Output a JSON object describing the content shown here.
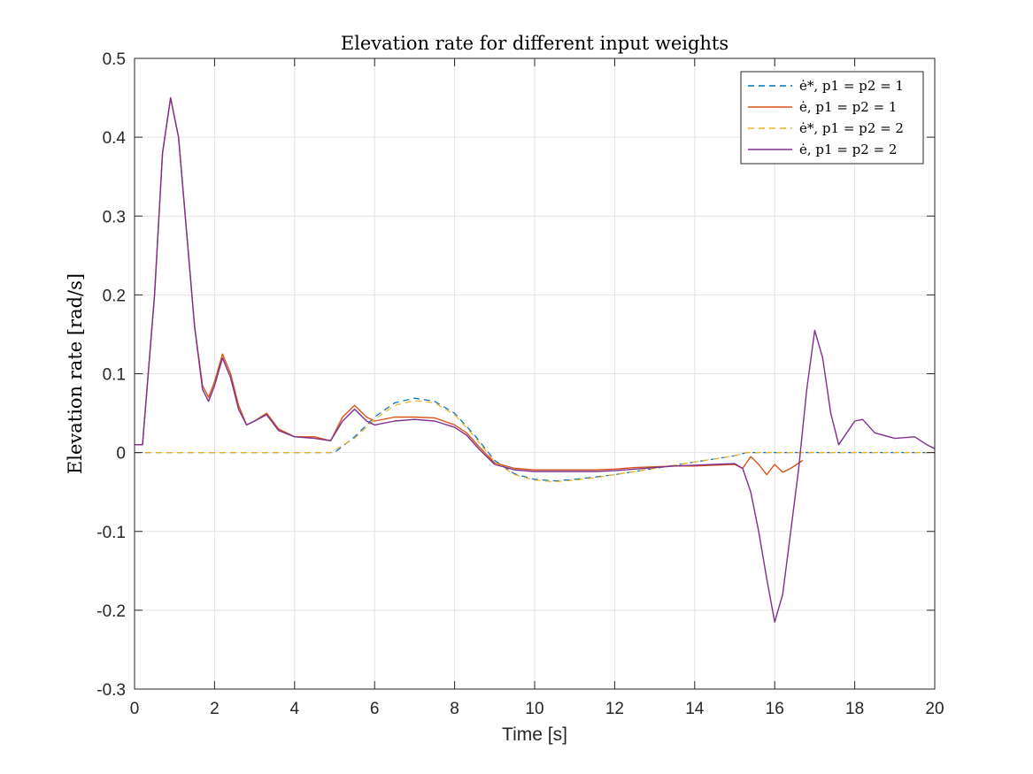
{
  "chart_data": {
    "type": "line",
    "title": "Elevation rate for different input weights",
    "xlabel": "Time [s]",
    "ylabel": "Elevation rate [rad/s]",
    "xlim": [
      0,
      20
    ],
    "ylim": [
      -0.3,
      0.5
    ],
    "xticks": [
      0,
      2,
      4,
      6,
      8,
      10,
      12,
      14,
      16,
      18,
      20
    ],
    "yticks": [
      -0.3,
      -0.2,
      -0.1,
      0,
      0.1,
      0.2,
      0.3,
      0.4,
      0.5
    ],
    "grid": true,
    "legend_position": "top-right",
    "series": [
      {
        "name": "ė*, p1 = p2 = 1",
        "style": "dashed",
        "color": "#0072BD",
        "x": [
          0,
          5.0,
          5.5,
          6.0,
          6.5,
          7.0,
          7.5,
          8.0,
          8.5,
          9.0,
          9.5,
          10.0,
          10.5,
          11.0,
          11.5,
          12.0,
          12.5,
          13.0,
          13.5,
          14.0,
          14.5,
          15.0,
          15.3,
          20
        ],
        "y": [
          0,
          0,
          0.02,
          0.045,
          0.063,
          0.069,
          0.065,
          0.05,
          0.022,
          -0.01,
          -0.027,
          -0.034,
          -0.036,
          -0.034,
          -0.031,
          -0.028,
          -0.024,
          -0.02,
          -0.016,
          -0.012,
          -0.008,
          -0.004,
          0,
          0
        ]
      },
      {
        "name": "ė, p1 = p2 = 1",
        "style": "solid",
        "color": "#D95319",
        "x": [
          0,
          0.2,
          0.5,
          0.7,
          0.9,
          1.1,
          1.3,
          1.5,
          1.7,
          1.85,
          2.0,
          2.2,
          2.4,
          2.6,
          2.8,
          3.0,
          3.3,
          3.6,
          4.0,
          4.5,
          4.9,
          5.2,
          5.5,
          5.8,
          6.0,
          6.5,
          7.0,
          7.5,
          8.0,
          8.3,
          8.6,
          9.0,
          9.5,
          10.0,
          10.5,
          11.0,
          11.5,
          12.0,
          12.5,
          13.0,
          13.5,
          14.0,
          14.5,
          15.0,
          15.2,
          15.4,
          15.6,
          15.8,
          16.0,
          16.2,
          16.4,
          16.7
        ],
        "y": [
          0.01,
          0.01,
          0.2,
          0.38,
          0.45,
          0.4,
          0.28,
          0.16,
          0.085,
          0.07,
          0.09,
          0.125,
          0.1,
          0.06,
          0.035,
          0.04,
          0.05,
          0.03,
          0.02,
          0.02,
          0.015,
          0.045,
          0.06,
          0.045,
          0.04,
          0.045,
          0.045,
          0.044,
          0.035,
          0.025,
          0.008,
          -0.013,
          -0.02,
          -0.022,
          -0.022,
          -0.022,
          -0.022,
          -0.021,
          -0.019,
          -0.018,
          -0.017,
          -0.017,
          -0.016,
          -0.015,
          -0.02,
          -0.005,
          -0.015,
          -0.028,
          -0.015,
          -0.025,
          -0.02,
          -0.01
        ]
      },
      {
        "name": "ė*, p1 = p2 = 2",
        "style": "dashed",
        "color": "#EDB120",
        "x": [
          0,
          4.9,
          5.5,
          6.0,
          6.5,
          7.0,
          7.5,
          8.0,
          8.5,
          9.0,
          9.5,
          10.0,
          10.5,
          11.0,
          11.5,
          12.0,
          12.5,
          13.0,
          13.5,
          14.0,
          14.5,
          15.0,
          15.3,
          20
        ],
        "y": [
          0,
          0,
          0.018,
          0.042,
          0.06,
          0.066,
          0.063,
          0.048,
          0.02,
          -0.012,
          -0.028,
          -0.035,
          -0.037,
          -0.035,
          -0.032,
          -0.028,
          -0.024,
          -0.02,
          -0.016,
          -0.012,
          -0.008,
          -0.004,
          0,
          0
        ]
      },
      {
        "name": "ė, p1 = p2 = 2",
        "style": "solid",
        "color": "#7E2F8E",
        "x": [
          0,
          0.2,
          0.5,
          0.7,
          0.9,
          1.1,
          1.3,
          1.5,
          1.7,
          1.85,
          2.0,
          2.2,
          2.4,
          2.6,
          2.8,
          3.0,
          3.3,
          3.6,
          4.0,
          4.5,
          4.9,
          5.2,
          5.5,
          5.8,
          6.0,
          6.5,
          7.0,
          7.5,
          8.0,
          8.3,
          8.6,
          9.0,
          9.5,
          10.0,
          10.5,
          11.0,
          11.5,
          12.0,
          12.5,
          13.0,
          13.5,
          14.0,
          14.5,
          15.0,
          15.2,
          15.4,
          15.6,
          15.8,
          16.0,
          16.2,
          16.4,
          16.6,
          16.8,
          17.0,
          17.2,
          17.4,
          17.6,
          17.8,
          18.0,
          18.2,
          18.5,
          19.0,
          19.5,
          19.8,
          20.0
        ],
        "y": [
          0.01,
          0.01,
          0.2,
          0.38,
          0.45,
          0.4,
          0.28,
          0.16,
          0.08,
          0.065,
          0.085,
          0.12,
          0.095,
          0.055,
          0.035,
          0.04,
          0.048,
          0.028,
          0.02,
          0.018,
          0.015,
          0.04,
          0.055,
          0.04,
          0.035,
          0.04,
          0.042,
          0.04,
          0.032,
          0.022,
          0.005,
          -0.015,
          -0.022,
          -0.024,
          -0.024,
          -0.024,
          -0.024,
          -0.023,
          -0.021,
          -0.019,
          -0.017,
          -0.016,
          -0.015,
          -0.014,
          -0.02,
          -0.05,
          -0.1,
          -0.16,
          -0.215,
          -0.18,
          -0.1,
          -0.02,
          0.08,
          0.155,
          0.12,
          0.05,
          0.01,
          0.025,
          0.04,
          0.042,
          0.025,
          0.018,
          0.02,
          0.01,
          0.005
        ]
      }
    ]
  }
}
